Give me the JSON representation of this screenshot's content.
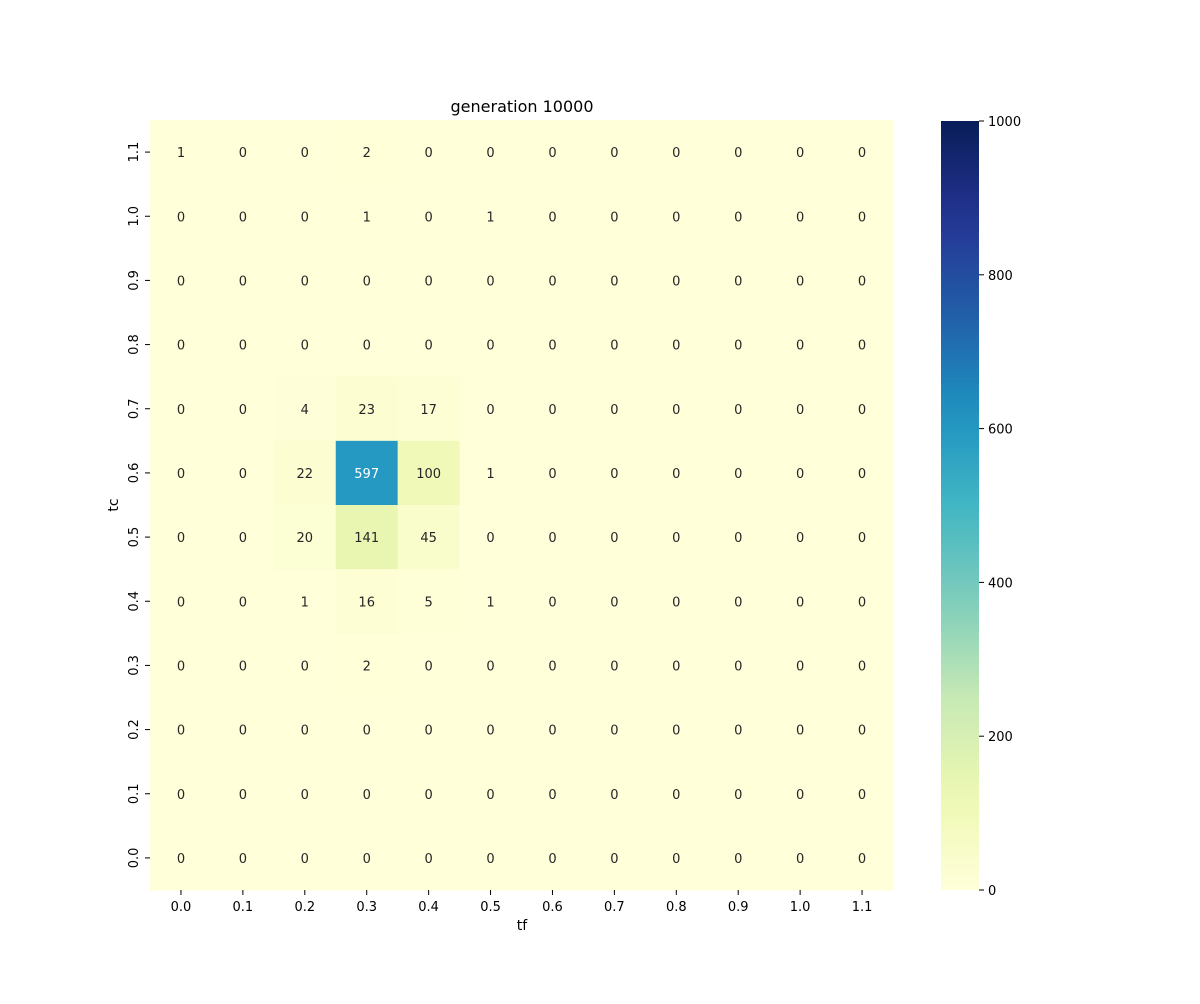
{
  "chart_data": {
    "type": "heatmap",
    "title": "generation 10000",
    "xlabel": "tf",
    "ylabel": "tc",
    "x_categories": [
      "0.0",
      "0.1",
      "0.2",
      "0.3",
      "0.4",
      "0.5",
      "0.6",
      "0.7",
      "0.8",
      "0.9",
      "1.0",
      "1.1"
    ],
    "y_categories": [
      "1.1",
      "1.0",
      "0.9",
      "0.8",
      "0.7",
      "0.6",
      "0.5",
      "0.4",
      "0.3",
      "0.2",
      "0.1",
      "0.0"
    ],
    "values": [
      [
        1,
        0,
        0,
        2,
        0,
        0,
        0,
        0,
        0,
        0,
        0,
        0
      ],
      [
        0,
        0,
        0,
        1,
        0,
        1,
        0,
        0,
        0,
        0,
        0,
        0
      ],
      [
        0,
        0,
        0,
        0,
        0,
        0,
        0,
        0,
        0,
        0,
        0,
        0
      ],
      [
        0,
        0,
        0,
        0,
        0,
        0,
        0,
        0,
        0,
        0,
        0,
        0
      ],
      [
        0,
        0,
        4,
        23,
        17,
        0,
        0,
        0,
        0,
        0,
        0,
        0
      ],
      [
        0,
        0,
        22,
        597,
        100,
        1,
        0,
        0,
        0,
        0,
        0,
        0
      ],
      [
        0,
        0,
        20,
        141,
        45,
        0,
        0,
        0,
        0,
        0,
        0,
        0
      ],
      [
        0,
        0,
        1,
        16,
        5,
        1,
        0,
        0,
        0,
        0,
        0,
        0
      ],
      [
        0,
        0,
        0,
        2,
        0,
        0,
        0,
        0,
        0,
        0,
        0,
        0
      ],
      [
        0,
        0,
        0,
        0,
        0,
        0,
        0,
        0,
        0,
        0,
        0,
        0
      ],
      [
        0,
        0,
        0,
        0,
        0,
        0,
        0,
        0,
        0,
        0,
        0,
        0
      ],
      [
        0,
        0,
        0,
        0,
        0,
        0,
        0,
        0,
        0,
        0,
        0,
        0
      ]
    ],
    "colormap": "YlGnBu",
    "vmin": 0,
    "vmax": 1000,
    "colorbar_ticks": [
      0,
      200,
      400,
      600,
      800,
      1000
    ],
    "annot_light_color": "#ffffff",
    "annot_dark_color": "#262626"
  }
}
